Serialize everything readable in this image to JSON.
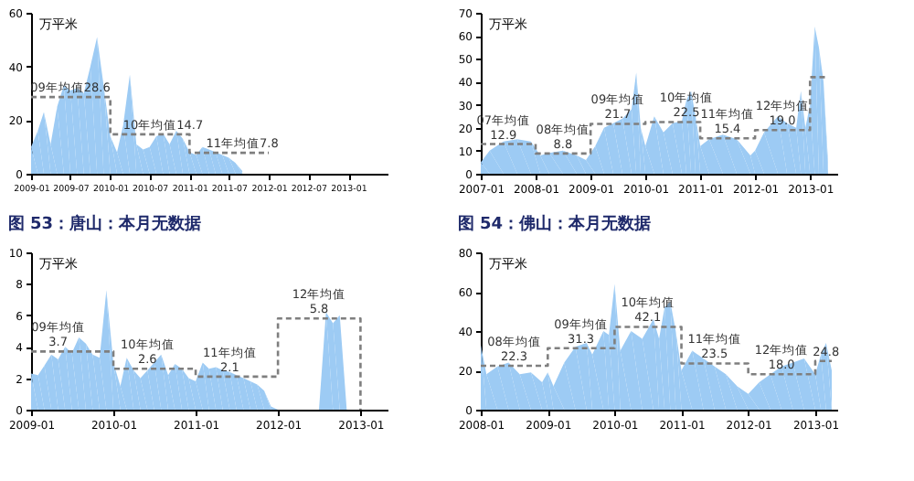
{
  "chart_data": [
    {
      "type": "area",
      "ylabel": "万平米",
      "xlim": [
        "2009-01",
        "2013-07"
      ],
      "ylim": [
        0,
        60
      ],
      "yticks": [
        0,
        20,
        40,
        60
      ],
      "xticks": [
        "2009-01",
        "2009-07",
        "2010-01",
        "2010-07",
        "2011-01",
        "2011-07",
        "2012-01",
        "2012-07",
        "2013-01"
      ],
      "grid": false,
      "marker": "none",
      "series": [
        {
          "color": "#9dcbf4",
          "x": [
            "2009-01",
            "2009-02",
            "2009-03",
            "2009-04",
            "2009-05",
            "2009-06",
            "2009-07",
            "2009-08",
            "2009-09",
            "2009-10",
            "2009-11",
            "2009-12",
            "2010-01",
            "2010-02",
            "2010-03",
            "2010-04",
            "2010-05",
            "2010-06",
            "2010-07",
            "2010-08",
            "2010-09",
            "2010-10",
            "2010-11",
            "2010-12",
            "2011-01",
            "2011-02",
            "2011-03",
            "2011-04",
            "2011-05",
            "2011-06",
            "2011-07",
            "2011-08",
            "2011-09"
          ],
          "values": [
            10,
            16,
            23,
            11,
            25,
            33,
            31,
            32,
            30,
            40,
            51,
            33,
            14,
            8,
            18,
            37,
            11,
            9,
            10,
            14,
            15,
            11,
            16,
            13,
            8,
            7,
            10,
            9,
            8,
            7,
            6,
            4,
            1
          ]
        },
        {
          "type": "line",
          "line_style": "dashed",
          "color": "#7f7f7f",
          "x": [
            "2009-01",
            "2010-01",
            "2010-01",
            "2011-01",
            "2011-01",
            "2012-01"
          ],
          "values": [
            28.6,
            28.6,
            14.7,
            14.7,
            7.8,
            7.8
          ]
        }
      ],
      "annotations": [
        {
          "text": "09年均值28.6",
          "x": "2009-07",
          "y": 28.6
        },
        {
          "text": "10年均值14.7",
          "x": "2010-09",
          "y": 14.7
        },
        {
          "text": "11年均值7.8",
          "x": "2011-09",
          "y": 7.8
        }
      ]
    },
    {
      "type": "area",
      "ylabel": "万平米",
      "xlim": [
        "2007-01",
        "2013-07"
      ],
      "ylim": [
        0,
        70
      ],
      "yticks": [
        0,
        10,
        20,
        30,
        40,
        50,
        60,
        70
      ],
      "xticks": [
        "2007-01",
        "2008-01",
        "2009-01",
        "2010-01",
        "2011-01",
        "2012-01",
        "2013-01"
      ],
      "grid": false,
      "marker": "none",
      "series": [
        {
          "color": "#9dcbf4",
          "x": [
            "2007-01",
            "2007-03",
            "2007-06",
            "2007-09",
            "2007-12",
            "2008-02",
            "2008-04",
            "2008-07",
            "2008-10",
            "2008-12",
            "2009-02",
            "2009-04",
            "2009-06",
            "2009-08",
            "2009-10",
            "2009-11",
            "2009-12",
            "2010-01",
            "2010-03",
            "2010-05",
            "2010-07",
            "2010-09",
            "2010-10",
            "2010-11",
            "2010-12",
            "2011-01",
            "2011-03",
            "2011-06",
            "2011-09",
            "2011-12",
            "2012-01",
            "2012-03",
            "2012-06",
            "2012-08",
            "2012-10",
            "2012-11",
            "2012-12",
            "2013-01",
            "2013-02",
            "2013-03",
            "2013-04",
            "2013-05"
          ],
          "values": [
            5,
            10,
            14,
            15,
            14,
            8,
            9,
            10,
            8,
            6,
            12,
            20,
            22,
            24,
            28,
            44,
            20,
            12,
            25,
            18,
            22,
            23,
            32,
            36,
            25,
            12,
            15,
            17,
            15,
            8,
            10,
            18,
            25,
            22,
            20,
            36,
            20,
            30,
            64,
            55,
            40,
            5
          ]
        },
        {
          "type": "line",
          "line_style": "dashed",
          "color": "#7f7f7f",
          "x": [
            "2007-01",
            "2008-01",
            "2008-01",
            "2009-01",
            "2009-01",
            "2010-01",
            "2010-01",
            "2011-01",
            "2011-01",
            "2012-01",
            "2012-01",
            "2013-01",
            "2013-01",
            "2013-05"
          ],
          "values": [
            12.9,
            12.9,
            8.8,
            8.8,
            21.7,
            21.7,
            22.5,
            22.5,
            15.4,
            15.4,
            19.0,
            19.0,
            42,
            42
          ]
        }
      ],
      "annotations": [
        {
          "text": "07年均值",
          "x": "2007-06",
          "y": 12.9
        },
        {
          "text": "12.9",
          "x": "2007-06",
          "y": 12.9
        },
        {
          "text": "08年均值",
          "x": "2008-07",
          "y": 8.8
        },
        {
          "text": "8.8",
          "x": "2008-07",
          "y": 8.8
        },
        {
          "text": "09年均值",
          "x": "2009-07",
          "y": 21.7
        },
        {
          "text": "21.7",
          "x": "2009-07",
          "y": 21.7
        },
        {
          "text": "10年均值",
          "x": "2010-10",
          "y": 22.5
        },
        {
          "text": "22.5",
          "x": "2010-10",
          "y": 22.5
        },
        {
          "text": "11年均值",
          "x": "2011-07",
          "y": 15.4
        },
        {
          "text": "15.4",
          "x": "2011-07",
          "y": 15.4
        },
        {
          "text": "12年均值",
          "x": "2012-07",
          "y": 19.0
        },
        {
          "text": "19.0",
          "x": "2012-07",
          "y": 19.0
        }
      ]
    },
    {
      "type": "area",
      "title": "图 53：唐山：本月无数据",
      "ylabel": "万平米",
      "xlim": [
        "2009-01",
        "2013-05"
      ],
      "ylim": [
        0,
        10
      ],
      "yticks": [
        0,
        2,
        4,
        6,
        8,
        10
      ],
      "xticks": [
        "2009-01",
        "2010-01",
        "2011-01",
        "2012-01",
        "2013-01"
      ],
      "grid": false,
      "marker": "none",
      "series": [
        {
          "color": "#9dcbf4",
          "x": [
            "2009-01",
            "2009-02",
            "2009-03",
            "2009-04",
            "2009-05",
            "2009-06",
            "2009-07",
            "2009-08",
            "2009-09",
            "2009-10",
            "2009-11",
            "2009-12",
            "2010-01",
            "2010-02",
            "2010-03",
            "2010-04",
            "2010-05",
            "2010-06",
            "2010-07",
            "2010-08",
            "2010-09",
            "2010-10",
            "2010-11",
            "2010-12",
            "2011-01",
            "2011-02",
            "2011-03",
            "2011-04",
            "2011-05",
            "2011-06",
            "2011-07",
            "2011-08",
            "2011-09",
            "2011-10",
            "2011-11",
            "2011-12",
            "2012-01",
            "2012-02",
            "2012-03",
            "2012-04",
            "2012-05",
            "2012-06",
            "2012-07",
            "2012-08",
            "2012-09",
            "2012-10",
            "2012-11"
          ],
          "values": [
            2.3,
            2.2,
            2.8,
            3.5,
            3.2,
            4.0,
            3.6,
            4.6,
            4.2,
            3.5,
            3.3,
            7.6,
            3.0,
            1.5,
            3.3,
            2.5,
            2.0,
            2.5,
            3.0,
            3.5,
            2.2,
            2.9,
            2.6,
            2.0,
            1.8,
            3.0,
            2.6,
            2.7,
            2.5,
            2.4,
            2.2,
            2.0,
            1.8,
            1.6,
            1.2,
            0.2,
            null,
            null,
            null,
            null,
            null,
            null,
            0,
            6.2,
            5.5,
            6.0,
            0
          ]
        },
        {
          "type": "line",
          "line_style": "dashed",
          "color": "#7f7f7f",
          "x": [
            "2009-01",
            "2010-01",
            "2010-01",
            "2011-01",
            "2011-01",
            "2012-01",
            "2012-01",
            "2013-01",
            "2013-01"
          ],
          "values": [
            3.7,
            3.7,
            2.6,
            2.6,
            2.1,
            2.1,
            5.8,
            5.8,
            0
          ]
        }
      ],
      "annotations": [
        {
          "text": "09年均值",
          "x": "2009-05",
          "y": 3.7
        },
        {
          "text": "3.7",
          "x": "2009-05",
          "y": 3.7
        },
        {
          "text": "10年均值",
          "x": "2010-06",
          "y": 2.6
        },
        {
          "text": "2.6",
          "x": "2010-06",
          "y": 2.6
        },
        {
          "text": "11年均值",
          "x": "2011-06",
          "y": 2.1
        },
        {
          "text": "2.1",
          "x": "2011-06",
          "y": 2.1
        },
        {
          "text": "12年均值",
          "x": "2012-07",
          "y": 5.8
        },
        {
          "text": "5.8",
          "x": "2012-07",
          "y": 5.8
        }
      ]
    },
    {
      "type": "area",
      "title": "图 54：佛山：本月无数据",
      "ylabel": "万平米",
      "xlim": [
        "2008-01",
        "2013-05"
      ],
      "ylim": [
        0,
        80
      ],
      "yticks": [
        0,
        20,
        40,
        60,
        80
      ],
      "xticks": [
        "2008-01",
        "2009-01",
        "2010-01",
        "2011-01",
        "2012-01",
        "2013-01"
      ],
      "grid": false,
      "marker": "none",
      "series": [
        {
          "color": "#9dcbf4",
          "x": [
            "2008-01",
            "2008-02",
            "2008-04",
            "2008-06",
            "2008-08",
            "2008-10",
            "2008-12",
            "2009-01",
            "2009-02",
            "2009-04",
            "2009-06",
            "2009-08",
            "2009-09",
            "2009-11",
            "2009-12",
            "2010-01",
            "2010-02",
            "2010-04",
            "2010-06",
            "2010-08",
            "2010-09",
            "2010-10",
            "2010-11",
            "2010-12",
            "2011-01",
            "2011-03",
            "2011-05",
            "2011-07",
            "2011-09",
            "2011-11",
            "2012-01",
            "2012-03",
            "2012-05",
            "2012-07",
            "2012-09",
            "2012-11",
            "2013-01",
            "2013-02",
            "2013-03",
            "2013-04"
          ],
          "values": [
            33,
            18,
            22,
            24,
            18,
            19,
            14,
            19,
            12,
            24,
            32,
            34,
            28,
            40,
            38,
            64,
            30,
            40,
            36,
            46,
            36,
            52,
            55,
            40,
            20,
            30,
            26,
            22,
            18,
            12,
            8,
            14,
            18,
            22,
            24,
            26,
            18,
            28,
            34,
            20
          ]
        },
        {
          "type": "line",
          "line_style": "dashed",
          "color": "#7f7f7f",
          "x": [
            "2008-01",
            "2009-01",
            "2009-01",
            "2010-01",
            "2010-01",
            "2011-01",
            "2011-01",
            "2012-01",
            "2012-01",
            "2013-01",
            "2013-01",
            "2013-04"
          ],
          "values": [
            22.3,
            22.3,
            31.3,
            31.3,
            42.1,
            42.1,
            23.5,
            23.5,
            18.0,
            18.0,
            24.8,
            24.8
          ]
        }
      ],
      "annotations": [
        {
          "text": "08年均值",
          "x": "2008-07",
          "y": 22.3
        },
        {
          "text": "22.3",
          "x": "2008-07",
          "y": 22.3
        },
        {
          "text": "09年均值",
          "x": "2009-07",
          "y": 31.3
        },
        {
          "text": "31.3",
          "x": "2009-07",
          "y": 31.3
        },
        {
          "text": "10年均值",
          "x": "2010-07",
          "y": 42.1
        },
        {
          "text": "42.1",
          "x": "2010-07",
          "y": 42.1
        },
        {
          "text": "11年均值",
          "x": "2011-07",
          "y": 23.5
        },
        {
          "text": "23.5",
          "x": "2011-07",
          "y": 23.5
        },
        {
          "text": "12年均值",
          "x": "2012-07",
          "y": 18.0
        },
        {
          "text": "18.0",
          "x": "2012-07",
          "y": 18.0
        },
        {
          "text": "24.8",
          "x": "2013-03",
          "y": 24.8
        }
      ]
    }
  ]
}
